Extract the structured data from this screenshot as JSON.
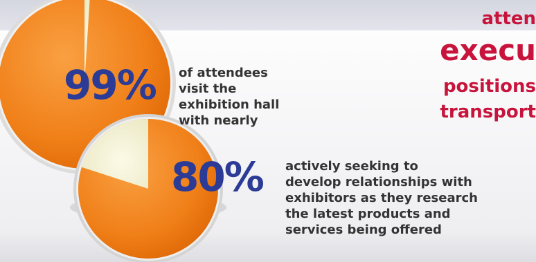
{
  "stats": [
    {
      "percent_label": "99%",
      "value": 99,
      "description_lines": [
        "of attendees",
        "visit the",
        "exhibition hall",
        "with nearly"
      ]
    },
    {
      "percent_label": "80%",
      "value": 80,
      "description_lines": [
        "actively seeking to",
        "develop relationships with",
        "exhibitors as they research",
        "the latest products and",
        "services being offered"
      ]
    }
  ],
  "red_text_lines": [
    "atten",
    "execu",
    "positions",
    "transport"
  ],
  "colors": {
    "pie_orange": "#f07f18",
    "pie_slice": "#f1efcf",
    "percent_blue": "#2b3b96",
    "red_text": "#c8143c"
  }
}
